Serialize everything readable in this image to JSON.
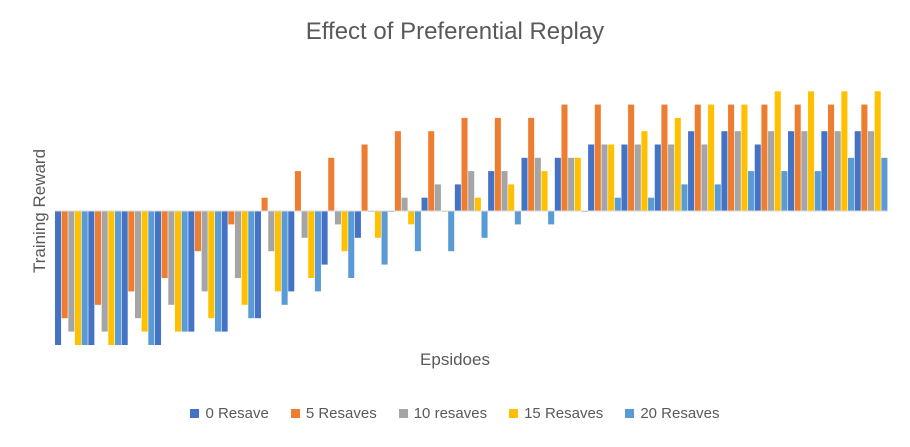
{
  "chart_data": {
    "type": "bar",
    "title": "Effect of Preferential Replay",
    "xlabel": "Epsidoes",
    "ylabel": "Training Reward",
    "grid": false,
    "legend_position": "bottom",
    "series": [
      {
        "name": "0 Resave",
        "color": "#4472C4",
        "values": [
          -1.0,
          -1.0,
          -1.0,
          -1.0,
          -0.9,
          -0.9,
          -0.8,
          -0.6,
          -0.4,
          -0.2,
          0.0,
          0.1,
          0.2,
          0.3,
          0.4,
          0.4,
          0.5,
          0.5,
          0.5,
          0.6,
          0.6,
          0.5,
          0.6,
          0.6,
          0.6
        ]
      },
      {
        "name": "5 Resaves",
        "color": "#ED7D31",
        "values": [
          -0.8,
          -0.7,
          -0.6,
          -0.5,
          -0.3,
          -0.1,
          0.1,
          0.3,
          0.4,
          0.5,
          0.6,
          0.6,
          0.7,
          0.7,
          0.7,
          0.8,
          0.8,
          0.8,
          0.8,
          0.8,
          0.8,
          0.8,
          0.8,
          0.8,
          0.8
        ]
      },
      {
        "name": "10 resaves",
        "color": "#A5A5A5",
        "values": [
          -0.9,
          -0.9,
          -0.8,
          -0.7,
          -0.6,
          -0.5,
          -0.3,
          -0.2,
          -0.1,
          0.0,
          0.1,
          0.2,
          0.3,
          0.3,
          0.4,
          0.4,
          0.5,
          0.5,
          0.5,
          0.5,
          0.6,
          0.6,
          0.6,
          0.6,
          0.6
        ]
      },
      {
        "name": "15 Resaves",
        "color": "#FFC000",
        "values": [
          -1.0,
          -1.0,
          -0.9,
          -0.9,
          -0.8,
          -0.7,
          -0.6,
          -0.5,
          -0.3,
          -0.2,
          -0.1,
          0.0,
          0.1,
          0.2,
          0.3,
          0.4,
          0.5,
          0.6,
          0.7,
          0.8,
          0.8,
          0.9,
          0.9,
          0.9,
          0.9
        ]
      },
      {
        "name": "20 Resaves",
        "color": "#5B9BD5",
        "values": [
          -1.0,
          -1.0,
          -1.0,
          -0.9,
          -0.9,
          -0.8,
          -0.7,
          -0.6,
          -0.5,
          -0.4,
          -0.3,
          -0.3,
          -0.2,
          -0.1,
          -0.1,
          0.0,
          0.1,
          0.1,
          0.2,
          0.2,
          0.3,
          0.3,
          0.3,
          0.4,
          0.4
        ]
      }
    ]
  }
}
